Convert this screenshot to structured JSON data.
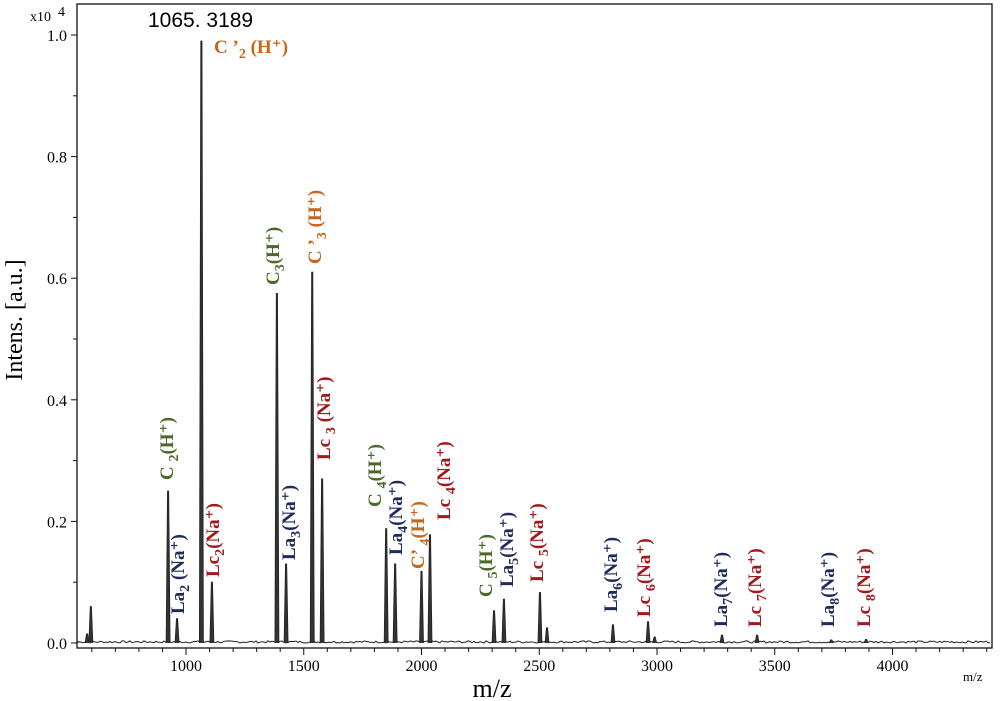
{
  "chart_data": {
    "type": "line",
    "title": "",
    "xlabel": "m/z",
    "xlabel_small": "m/z",
    "ylabel": "Intens. [a.u.]",
    "y_multiplier": {
      "base": "x10",
      "exp": "4"
    },
    "xlim": [
      537,
      4414
    ],
    "ylim": [
      0,
      1.0
    ],
    "x_ticks": [
      1000,
      1500,
      2000,
      2500,
      3000,
      3500,
      4000
    ],
    "x_tick_labels": [
      "1000",
      "1500",
      "2000",
      "2500",
      "3000",
      "3500",
      "4000"
    ],
    "y_ticks": [
      0.0,
      0.2,
      0.4,
      0.6,
      0.8,
      1.0
    ],
    "y_tick_labels": [
      "0.0",
      "0.2",
      "0.4",
      "0.6",
      "0.8",
      "1.0"
    ],
    "grid": false,
    "peak_annotation": "1065. 3189",
    "colors": {
      "C": "#4b6a2a",
      "Cprime": "#c8661c",
      "La": "#1f2b5c",
      "Lc": "#a3181c",
      "line": "#222222"
    },
    "peaks": [
      {
        "mz": 580,
        "intensity": 0.015
      },
      {
        "mz": 596,
        "intensity": 0.06
      },
      {
        "mz": 924,
        "intensity": 0.25,
        "label": {
          "main": "C ",
          "sub": "2",
          "ion": "(H⁺)",
          "series": "C"
        }
      },
      {
        "mz": 962,
        "intensity": 0.04,
        "label": {
          "main": "La",
          "sub": "2",
          "ion": " (Na⁺)",
          "series": "La"
        }
      },
      {
        "mz": 1065.3189,
        "intensity": 0.99,
        "label": {
          "main": "C ’",
          "sub": "2",
          "ion": " (H⁺)",
          "series": "Cprime"
        }
      },
      {
        "mz": 1110,
        "intensity": 0.1,
        "label": {
          "main": "Lc",
          "sub": "2",
          "ion": "(Na⁺)",
          "series": "Lc"
        }
      },
      {
        "mz": 1386,
        "intensity": 0.575,
        "label": {
          "main": "C",
          "sub": "3",
          "ion": "(H⁺)",
          "series": "C"
        }
      },
      {
        "mz": 1425,
        "intensity": 0.13,
        "label": {
          "main": "La",
          "sub": "3",
          "ion": "(Na⁺)",
          "series": "La"
        }
      },
      {
        "mz": 1536,
        "intensity": 0.61,
        "label": {
          "main": "C ’",
          "sub": "3",
          "ion": " (H⁺)",
          "series": "Cprime"
        }
      },
      {
        "mz": 1578,
        "intensity": 0.27,
        "label": {
          "main": "Lc ",
          "sub": "3",
          "ion": " (Na⁺)",
          "series": "Lc"
        }
      },
      {
        "mz": 1850,
        "intensity": 0.188,
        "label": {
          "main": "C ",
          "sub": "4",
          "ion": "(H⁺)",
          "series": "C"
        }
      },
      {
        "mz": 1888,
        "intensity": 0.13,
        "label": {
          "main": "La",
          "sub": "4",
          "ion": "(Na⁺)",
          "series": "La"
        }
      },
      {
        "mz": 2000,
        "intensity": 0.118,
        "label": {
          "main": "C’ ",
          "sub": "4",
          "ion": "(H⁺)",
          "series": "Cprime"
        }
      },
      {
        "mz": 2036,
        "intensity": 0.178,
        "label": {
          "main": "Lc ",
          "sub": "4",
          "ion": "(Na⁺)",
          "series": "Lc"
        }
      },
      {
        "mz": 2308,
        "intensity": 0.053,
        "label": {
          "main": "C ",
          "sub": "5",
          "ion": "(H⁺)",
          "series": "C"
        }
      },
      {
        "mz": 2350,
        "intensity": 0.072,
        "label": {
          "main": "La",
          "sub": "5",
          "ion": "(Na⁺)",
          "series": "La"
        }
      },
      {
        "mz": 2503,
        "intensity": 0.083,
        "label": {
          "main": "Lc ",
          "sub": "5",
          "ion": "(Na⁺)",
          "series": "Lc"
        }
      },
      {
        "mz": 2533,
        "intensity": 0.025
      },
      {
        "mz": 2813,
        "intensity": 0.03,
        "label": {
          "main": "La",
          "sub": "6",
          "ion": "(Na⁺)",
          "series": "La"
        }
      },
      {
        "mz": 2962,
        "intensity": 0.035,
        "label": {
          "main": "Lc ",
          "sub": "6",
          "ion": "(Na⁺)",
          "series": "Lc"
        }
      },
      {
        "mz": 2990,
        "intensity": 0.01
      },
      {
        "mz": 3276,
        "intensity": 0.013,
        "label": {
          "main": "La",
          "sub": "7",
          "ion": "(Na⁺)",
          "series": "La"
        }
      },
      {
        "mz": 3425,
        "intensity": 0.013,
        "label": {
          "main": "Lc ",
          "sub": "7",
          "ion": "(Na⁺)",
          "series": "Lc"
        }
      },
      {
        "mz": 3740,
        "intensity": 0.005,
        "label": {
          "main": "La",
          "sub": "8",
          "ion": "(Na⁺)",
          "series": "La"
        }
      },
      {
        "mz": 3888,
        "intensity": 0.006,
        "label": {
          "main": "Lc ",
          "sub": "8",
          "ion": "(Na⁺)",
          "series": "Lc"
        }
      }
    ]
  }
}
